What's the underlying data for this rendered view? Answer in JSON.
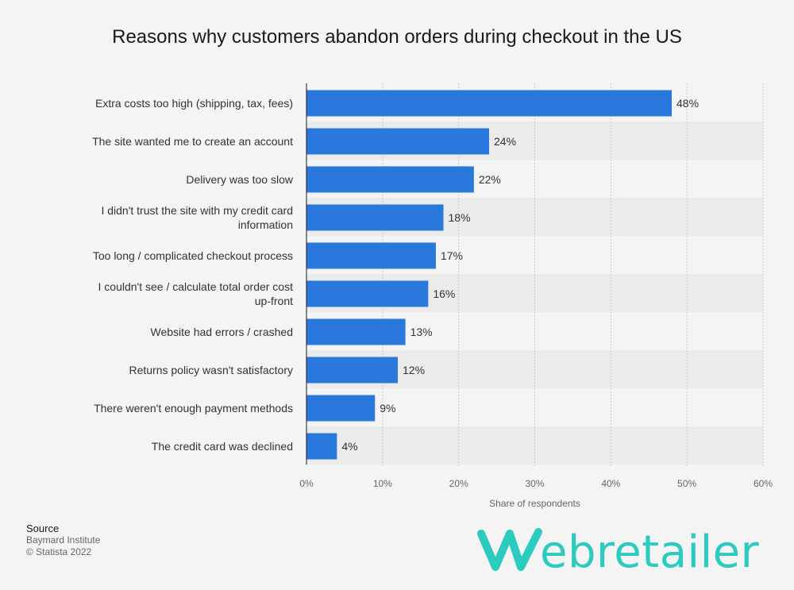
{
  "title": "Reasons why customers abandon orders during checkout in the US",
  "source": {
    "heading": "Source",
    "name": "Baymard Institute",
    "copyright": "© Statista 2022"
  },
  "logo": {
    "text": "ebretailer",
    "color": "#2ccbbf"
  },
  "colors": {
    "bar": "#2878de",
    "stripe": "#ebebeb",
    "grid": "#c8c8c8"
  },
  "chart_data": {
    "type": "bar",
    "orientation": "horizontal",
    "categories": [
      "Extra costs too high (shipping, tax, fees)",
      "The site wanted me to create an account",
      "Delivery was too slow",
      "I didn't trust the site with my credit card information",
      "Too long / complicated checkout process",
      "I couldn't see / calculate total order cost up-front",
      "Website had errors / crashed",
      "Returns policy wasn't satisfactory",
      "There weren't enough payment methods",
      "The credit card was declined"
    ],
    "values": [
      48,
      24,
      22,
      18,
      17,
      16,
      13,
      12,
      9,
      4
    ],
    "value_labels": [
      "48%",
      "24%",
      "22%",
      "18%",
      "17%",
      "16%",
      "13%",
      "12%",
      "9%",
      "4%"
    ],
    "xlabel": "Share of respondents",
    "xlim": [
      0,
      60
    ],
    "x_ticks": [
      "0%",
      "10%",
      "20%",
      "30%",
      "40%",
      "50%",
      "60%"
    ],
    "grid": true
  }
}
